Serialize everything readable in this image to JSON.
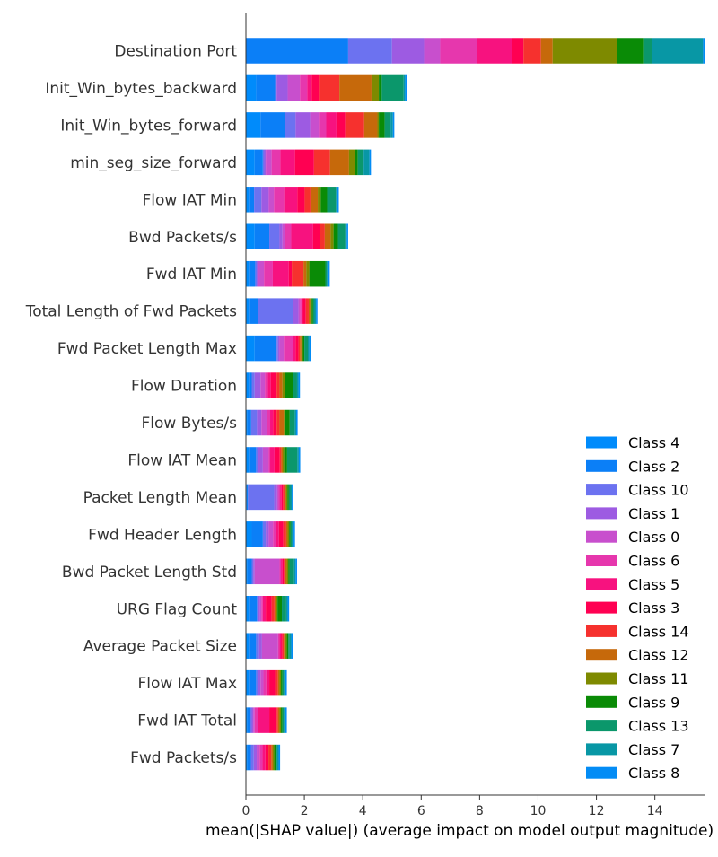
{
  "chart_data": {
    "type": "bar",
    "orientation": "horizontal",
    "stacked": true,
    "xlabel": "mean(|SHAP value|) (average impact on model output magnitude)",
    "xlim": [
      0,
      15.7
    ],
    "xticks": [
      0,
      2,
      4,
      6,
      8,
      10,
      12,
      14
    ],
    "legend_position": "lower-right",
    "categories": [
      "Destination Port",
      "Init_Win_bytes_backward",
      "Init_Win_bytes_forward",
      "min_seg_size_forward",
      "Flow IAT Min",
      "Bwd Packets/s",
      "Fwd IAT Min",
      "Total Length of Fwd Packets",
      "Fwd Packet Length Max",
      "Flow Duration",
      "Flow Bytes/s",
      "Flow IAT Mean",
      "Packet Length Mean",
      "Fwd Header Length",
      "Bwd Packet Length Std",
      "URG Flag Count",
      "Average Packet Size",
      "Flow IAT Max",
      "Fwd IAT Total",
      "Fwd Packets/s"
    ],
    "series": [
      {
        "name": "Class 4",
        "color": "#008bfb",
        "values": [
          0.0,
          0.35,
          0.5,
          0.3,
          0.1,
          0.3,
          0.1,
          0.1,
          0.3,
          0.1,
          0.05,
          0.1,
          0.02,
          0.2,
          0.05,
          0.1,
          0.1,
          0.1,
          0.05,
          0.05
        ]
      },
      {
        "name": "Class 2",
        "color": "#0b7ff7",
        "values": [
          3.5,
          0.65,
          0.85,
          0.28,
          0.18,
          0.5,
          0.22,
          0.3,
          0.75,
          0.1,
          0.13,
          0.25,
          0.05,
          0.38,
          0.15,
          0.28,
          0.25,
          0.25,
          0.1,
          0.12
        ]
      },
      {
        "name": "Class 10",
        "color": "#6c72f0",
        "values": [
          1.5,
          0.05,
          0.35,
          0.05,
          0.25,
          0.35,
          0.05,
          1.2,
          0.05,
          0.1,
          0.2,
          0.05,
          0.9,
          0.1,
          0.05,
          0.05,
          0.1,
          0.05,
          0.05,
          0.1
        ]
      },
      {
        "name": "Class 1",
        "color": "#9d5be2",
        "values": [
          1.1,
          0.38,
          0.5,
          0.05,
          0.25,
          0.1,
          0.05,
          0.2,
          0.05,
          0.2,
          0.15,
          0.18,
          0.1,
          0.1,
          0.05,
          0.05,
          0.1,
          0.1,
          0.05,
          0.1
        ]
      },
      {
        "name": "Class 0",
        "color": "#c84fcd",
        "values": [
          0.55,
          0.42,
          0.3,
          0.2,
          0.18,
          0.1,
          0.2,
          0.05,
          0.15,
          0.15,
          0.2,
          0.2,
          0.05,
          0.15,
          0.85,
          0.05,
          0.55,
          0.1,
          0.05,
          0.1
        ]
      },
      {
        "name": "Class 6",
        "color": "#e637ad",
        "values": [
          1.25,
          0.25,
          0.25,
          0.3,
          0.35,
          0.2,
          0.3,
          0.05,
          0.3,
          0.1,
          0.1,
          0.05,
          0.05,
          0.1,
          0.05,
          0.05,
          0.05,
          0.1,
          0.1,
          0.1
        ]
      },
      {
        "name": "Class 5",
        "color": "#f7127f",
        "values": [
          1.2,
          0.15,
          0.35,
          0.5,
          0.45,
          0.75,
          0.55,
          0.05,
          0.1,
          0.1,
          0.1,
          0.15,
          0.05,
          0.1,
          0.05,
          0.1,
          0.05,
          0.1,
          0.4,
          0.1
        ]
      },
      {
        "name": "Class 3",
        "color": "#ff0052",
        "values": [
          0.4,
          0.25,
          0.3,
          0.65,
          0.25,
          0.25,
          0.1,
          0.1,
          0.1,
          0.2,
          0.12,
          0.18,
          0.05,
          0.15,
          0.05,
          0.2,
          0.05,
          0.2,
          0.25,
          0.1
        ]
      },
      {
        "name": "Class 14",
        "color": "#f6312e",
        "values": [
          0.6,
          0.7,
          0.65,
          0.55,
          0.2,
          0.15,
          0.4,
          0.1,
          0.05,
          0.1,
          0.1,
          0.05,
          0.05,
          0.1,
          0.05,
          0.1,
          0.05,
          0.1,
          0.05,
          0.1
        ]
      },
      {
        "name": "Class 12",
        "color": "#c6690b",
        "values": [
          0.4,
          1.1,
          0.45,
          0.65,
          0.25,
          0.2,
          0.1,
          0.05,
          0.05,
          0.1,
          0.15,
          0.05,
          0.05,
          0.05,
          0.05,
          0.05,
          0.05,
          0.05,
          0.05,
          0.05
        ]
      },
      {
        "name": "Class 11",
        "color": "#7e8a00",
        "values": [
          2.2,
          0.25,
          0.05,
          0.2,
          0.1,
          0.1,
          0.1,
          0.05,
          0.05,
          0.1,
          0.05,
          0.05,
          0.05,
          0.05,
          0.05,
          0.05,
          0.05,
          0.05,
          0.05,
          0.05
        ]
      },
      {
        "name": "Class 9",
        "color": "#0a8b06",
        "values": [
          0.9,
          0.1,
          0.2,
          0.1,
          0.22,
          0.15,
          0.55,
          0.05,
          0.05,
          0.25,
          0.15,
          0.1,
          0.05,
          0.05,
          0.05,
          0.15,
          0.05,
          0.05,
          0.05,
          0.05
        ]
      },
      {
        "name": "Class 13",
        "color": "#0b976b",
        "values": [
          0.3,
          0.75,
          0.2,
          0.2,
          0.3,
          0.25,
          0.05,
          0.05,
          0.12,
          0.15,
          0.17,
          0.35,
          0.05,
          0.05,
          0.15,
          0.15,
          0.05,
          0.05,
          0.05,
          0.05
        ]
      },
      {
        "name": "Class 7",
        "color": "#0897a5",
        "values": [
          1.75,
          0.05,
          0.08,
          0.2,
          0.05,
          0.05,
          0.05,
          0.05,
          0.05,
          0.05,
          0.05,
          0.05,
          0.05,
          0.05,
          0.05,
          0.05,
          0.05,
          0.05,
          0.05,
          0.05
        ]
      },
      {
        "name": "Class 8",
        "color": "#038cf5",
        "values": [
          0.05,
          0.05,
          0.05,
          0.05,
          0.05,
          0.05,
          0.05,
          0.05,
          0.05,
          0.05,
          0.05,
          0.05,
          0.05,
          0.05,
          0.05,
          0.05,
          0.05,
          0.05,
          0.05,
          0.05
        ]
      }
    ]
  }
}
